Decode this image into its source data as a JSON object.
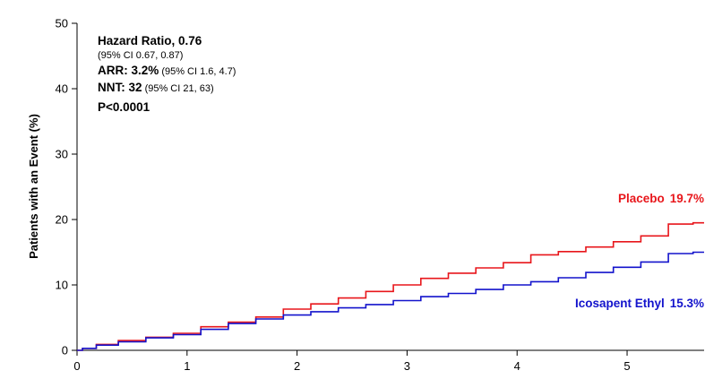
{
  "chart_data": {
    "type": "line",
    "title": "",
    "xlabel": "",
    "ylabel": "Patients with an Event (%)",
    "xlim": [
      0,
      5.7
    ],
    "ylim": [
      0,
      50
    ],
    "x_ticks": [
      "0",
      "1",
      "2",
      "3",
      "4",
      "5"
    ],
    "y_ticks": [
      "0",
      "10",
      "20",
      "30",
      "40",
      "50"
    ],
    "grid": false,
    "annotations": {
      "hr_label": "Hazard Ratio, 0.76",
      "hr_ci": "(95% CI 0.67, 0.87)",
      "arr_label": "ARR: 3.2%",
      "arr_ci": " (95% CI 1.6, 4.7)",
      "nnt_label": "NNT: 32",
      "nnt_ci": " (95% CI 21, 63)",
      "p_value": "P<0.0001"
    },
    "series": [
      {
        "name": "Placebo",
        "end_label": "19.7%",
        "color": "#e8161b",
        "x": [
          0,
          0.1,
          0.25,
          0.5,
          0.75,
          1.0,
          1.25,
          1.5,
          1.75,
          2.0,
          2.25,
          2.5,
          2.75,
          3.0,
          3.25,
          3.5,
          3.75,
          4.0,
          4.25,
          4.5,
          4.75,
          5.0,
          5.25,
          5.5,
          5.7
        ],
        "y": [
          0,
          0.3,
          0.9,
          1.5,
          2.0,
          2.6,
          3.6,
          4.3,
          5.1,
          6.3,
          7.1,
          8.0,
          9.0,
          10.0,
          11.0,
          11.8,
          12.6,
          13.4,
          14.6,
          15.1,
          15.8,
          16.6,
          17.5,
          19.3,
          19.5
        ]
      },
      {
        "name": "Icosapent Ethyl",
        "end_label": "15.3%",
        "color": "#1313cc",
        "x": [
          0,
          0.1,
          0.25,
          0.5,
          0.75,
          1.0,
          1.25,
          1.5,
          1.75,
          2.0,
          2.25,
          2.5,
          2.75,
          3.0,
          3.25,
          3.5,
          3.75,
          4.0,
          4.25,
          4.5,
          4.75,
          5.0,
          5.25,
          5.5,
          5.7
        ],
        "y": [
          0,
          0.3,
          0.8,
          1.3,
          1.9,
          2.4,
          3.2,
          4.1,
          4.8,
          5.4,
          5.9,
          6.5,
          7.0,
          7.6,
          8.2,
          8.7,
          9.3,
          10.0,
          10.5,
          11.1,
          11.9,
          12.7,
          13.5,
          14.8,
          15.0
        ]
      }
    ]
  }
}
